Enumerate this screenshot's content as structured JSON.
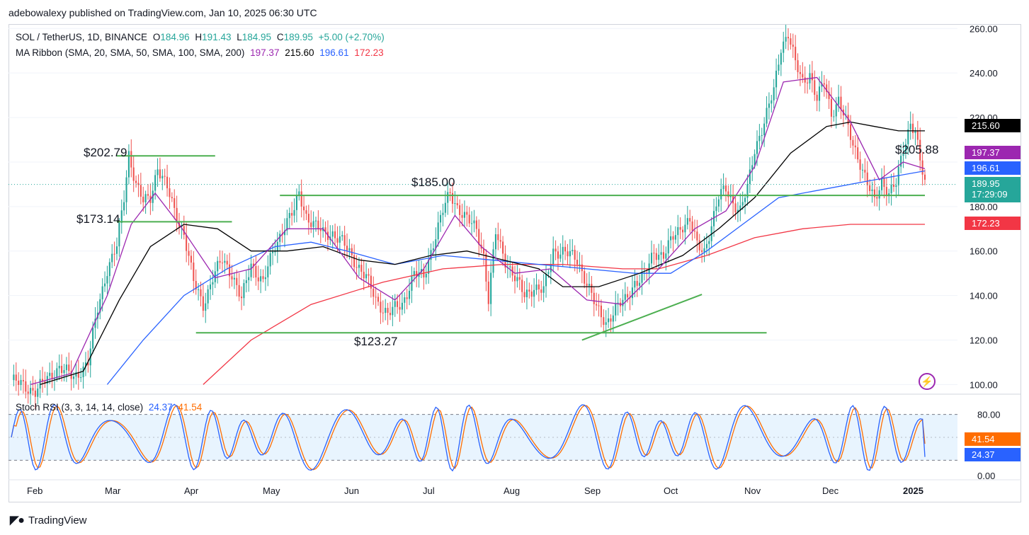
{
  "publisher": "adebowalexy published on TradingView.com, Jan 10, 2025 06:30 UTC",
  "legend": {
    "symbol": "SOL / TetherUS, 1D, BINANCE",
    "o_label": "O",
    "o": "184.96",
    "h_label": "H",
    "h": "191.43",
    "l_label": "L",
    "l": "184.95",
    "c_label": "C",
    "c": "189.95",
    "change": "+5.00 (+2.70%)",
    "ma_title": "MA Ribbon (SMA, 20, SMA, 50, SMA, 100, SMA, 200)",
    "ma20": "197.37",
    "ma50": "215.60",
    "ma100": "196.61",
    "ma200": "172.23",
    "stoch_title": "Stoch RSI (3, 3, 14, 14, close)",
    "stoch_k": "24.37",
    "stoch_d": "41.54"
  },
  "annotations": {
    "a1": "$202.79",
    "a2": "$173.14",
    "a3": "$185.00",
    "a4": "$123.27",
    "a5": "$205.88"
  },
  "price_tags": {
    "ma50": "215.60",
    "ma20": "197.37",
    "ma100": "196.61",
    "last": "189.95",
    "countdown": "17:29:09",
    "ma200": "172.23"
  },
  "footer": {
    "brand": "TradingView"
  },
  "colors": {
    "up": "#26a69a",
    "down": "#ef5350",
    "ma20": "#9c27b0",
    "ma50": "#000000",
    "ma100": "#2962ff",
    "ma200": "#f23645",
    "support": "#4caf50",
    "stoch_k": "#2962ff",
    "stoch_d": "#ff6d00"
  },
  "chart_data": {
    "type": "candlestick",
    "price_axis": {
      "ticks": [
        100,
        120,
        140,
        160,
        180,
        200,
        220,
        240,
        260
      ],
      "labels": [
        "100.00",
        "120.00",
        "140.00",
        "160.00",
        "180.00",
        "",
        "220.00",
        "240.00",
        "260.00"
      ],
      "range": [
        96,
        262
      ]
    },
    "time_axis": {
      "labels": [
        "Feb",
        "Mar",
        "Apr",
        "May",
        "Jun",
        "Jul",
        "Aug",
        "Sep",
        "Oct",
        "Nov",
        "Dec",
        "2025"
      ]
    },
    "close_path": [
      [
        0,
        102
      ],
      [
        10,
        97
      ],
      [
        20,
        108
      ],
      [
        26,
        103
      ],
      [
        32,
        110
      ],
      [
        36,
        134
      ],
      [
        40,
        152
      ],
      [
        44,
        162
      ],
      [
        47,
        184
      ],
      [
        49,
        204
      ],
      [
        52,
        190
      ],
      [
        55,
        182
      ],
      [
        58,
        184
      ],
      [
        61,
        198
      ],
      [
        65,
        188
      ],
      [
        68,
        178
      ],
      [
        72,
        168
      ],
      [
        76,
        146
      ],
      [
        80,
        136
      ],
      [
        84,
        148
      ],
      [
        88,
        156
      ],
      [
        92,
        150
      ],
      [
        96,
        138
      ],
      [
        100,
        154
      ],
      [
        105,
        146
      ],
      [
        110,
        162
      ],
      [
        114,
        172
      ],
      [
        118,
        178
      ],
      [
        120,
        186
      ],
      [
        123,
        176
      ],
      [
        126,
        172
      ],
      [
        130,
        168
      ],
      [
        134,
        168
      ],
      [
        138,
        164
      ],
      [
        143,
        156
      ],
      [
        148,
        148
      ],
      [
        152,
        138
      ],
      [
        157,
        132
      ],
      [
        163,
        136
      ],
      [
        168,
        150
      ],
      [
        172,
        148
      ],
      [
        176,
        164
      ],
      [
        180,
        178
      ],
      [
        183,
        186
      ],
      [
        186,
        180
      ],
      [
        190,
        174
      ],
      [
        194,
        170
      ],
      [
        197,
        158
      ],
      [
        199,
        138
      ],
      [
        202,
        168
      ],
      [
        206,
        156
      ],
      [
        210,
        148
      ],
      [
        214,
        140
      ],
      [
        218,
        144
      ],
      [
        222,
        142
      ],
      [
        226,
        160
      ],
      [
        230,
        160
      ],
      [
        236,
        156
      ],
      [
        240,
        146
      ],
      [
        244,
        134
      ],
      [
        248,
        128
      ],
      [
        252,
        134
      ],
      [
        256,
        138
      ],
      [
        260,
        146
      ],
      [
        264,
        148
      ],
      [
        268,
        160
      ],
      [
        272,
        158
      ],
      [
        276,
        166
      ],
      [
        280,
        172
      ],
      [
        283,
        174
      ],
      [
        286,
        162
      ],
      [
        289,
        160
      ],
      [
        292,
        172
      ],
      [
        295,
        184
      ],
      [
        298,
        188
      ],
      [
        301,
        182
      ],
      [
        304,
        178
      ],
      [
        307,
        188
      ],
      [
        310,
        206
      ],
      [
        314,
        218
      ],
      [
        318,
        232
      ],
      [
        321,
        252
      ],
      [
        324,
        258
      ],
      [
        327,
        244
      ],
      [
        330,
        236
      ],
      [
        333,
        240
      ],
      [
        336,
        228
      ],
      [
        339,
        236
      ],
      [
        342,
        222
      ],
      [
        345,
        228
      ],
      [
        348,
        218
      ],
      [
        351,
        208
      ],
      [
        354,
        200
      ],
      [
        357,
        190
      ],
      [
        360,
        182
      ],
      [
        363,
        192
      ],
      [
        366,
        186
      ],
      [
        369,
        190
      ],
      [
        372,
        206
      ],
      [
        375,
        218
      ],
      [
        377,
        214
      ],
      [
        379,
        200
      ],
      [
        381,
        190
      ]
    ],
    "ma20": [
      [
        8,
        100
      ],
      [
        25,
        105
      ],
      [
        40,
        140
      ],
      [
        50,
        172
      ],
      [
        60,
        186
      ],
      [
        70,
        172
      ],
      [
        85,
        148
      ],
      [
        100,
        152
      ],
      [
        115,
        170
      ],
      [
        130,
        170
      ],
      [
        145,
        148
      ],
      [
        160,
        138
      ],
      [
        172,
        152
      ],
      [
        185,
        176
      ],
      [
        196,
        162
      ],
      [
        210,
        150
      ],
      [
        225,
        152
      ],
      [
        240,
        138
      ],
      [
        255,
        136
      ],
      [
        270,
        152
      ],
      [
        285,
        170
      ],
      [
        298,
        178
      ],
      [
        310,
        198
      ],
      [
        322,
        236
      ],
      [
        336,
        238
      ],
      [
        350,
        218
      ],
      [
        362,
        192
      ],
      [
        372,
        200
      ],
      [
        381,
        197
      ]
    ],
    "ma50": [
      [
        12,
        100
      ],
      [
        30,
        106
      ],
      [
        45,
        138
      ],
      [
        58,
        162
      ],
      [
        72,
        172
      ],
      [
        86,
        170
      ],
      [
        100,
        160
      ],
      [
        115,
        160
      ],
      [
        130,
        162
      ],
      [
        145,
        156
      ],
      [
        160,
        154
      ],
      [
        175,
        158
      ],
      [
        190,
        160
      ],
      [
        205,
        156
      ],
      [
        220,
        152
      ],
      [
        230,
        144
      ],
      [
        245,
        144
      ],
      [
        262,
        150
      ],
      [
        280,
        158
      ],
      [
        295,
        170
      ],
      [
        310,
        184
      ],
      [
        325,
        204
      ],
      [
        340,
        216
      ],
      [
        350,
        218
      ],
      [
        360,
        216
      ],
      [
        370,
        214
      ],
      [
        381,
        214
      ]
    ],
    "ma100": [
      [
        40,
        100
      ],
      [
        55,
        120
      ],
      [
        72,
        140
      ],
      [
        90,
        152
      ],
      [
        110,
        162
      ],
      [
        125,
        164
      ],
      [
        140,
        160
      ],
      [
        160,
        154
      ],
      [
        180,
        158
      ],
      [
        200,
        156
      ],
      [
        220,
        154
      ],
      [
        240,
        152
      ],
      [
        260,
        150
      ],
      [
        275,
        150
      ],
      [
        290,
        160
      ],
      [
        305,
        172
      ],
      [
        320,
        184
      ],
      [
        340,
        188
      ],
      [
        360,
        192
      ],
      [
        381,
        196
      ]
    ],
    "ma200": [
      [
        80,
        100
      ],
      [
        100,
        120
      ],
      [
        125,
        136
      ],
      [
        155,
        146
      ],
      [
        180,
        152
      ],
      [
        205,
        154
      ],
      [
        230,
        154
      ],
      [
        255,
        152
      ],
      [
        270,
        152
      ],
      [
        290,
        158
      ],
      [
        310,
        166
      ],
      [
        330,
        170
      ],
      [
        350,
        172
      ],
      [
        381,
        172
      ]
    ],
    "horizontal_levels": [
      202.79,
      173.14,
      185.0,
      123.27
    ],
    "stoch_rsi": {
      "range": [
        0,
        100
      ],
      "levels": [
        80,
        20
      ],
      "ticks": [
        0,
        80
      ],
      "tick_labels": [
        "0.00",
        "80.00"
      ],
      "k_last": 24.37,
      "d_last": 41.54
    }
  }
}
